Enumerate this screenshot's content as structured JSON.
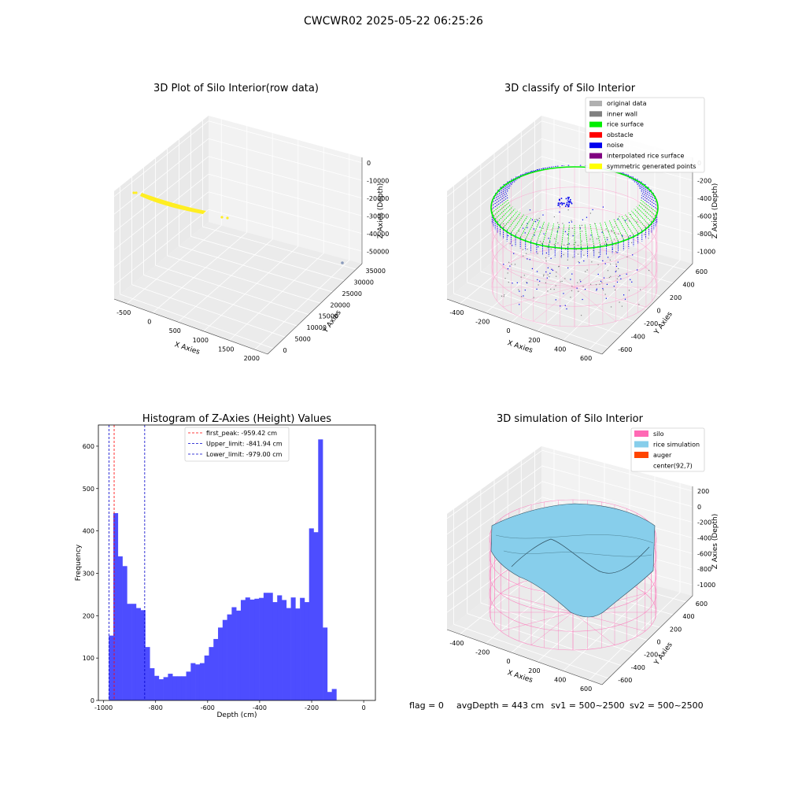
{
  "figure": {
    "suptitle": "CWCWR02 2025-05-22 06:25:26",
    "status": {
      "flag": "flag = 0",
      "avgDepth": "avgDepth = 443 cm",
      "sv1": "sv1 = 500~2500",
      "sv2": "sv2 = 500~2500"
    }
  },
  "panels": {
    "raw": {
      "title": "3D Plot of Silo Interior(row data)",
      "xlabel": "X Axies",
      "ylabel": "Y Axies",
      "zlabel": "Z Axies (Depth)",
      "xticks": [
        "-500",
        "0",
        "500",
        "1000",
        "1500",
        "2000"
      ],
      "yticks": [
        "0",
        "5000",
        "10000",
        "15000",
        "20000",
        "25000",
        "30000",
        "35000"
      ],
      "zticks": [
        "0",
        "-10000",
        "-20000",
        "-30000",
        "-40000",
        "-50000"
      ],
      "point_color": "#ffee22",
      "outlier_color": "#8899bb"
    },
    "classify": {
      "title": "3D classify of Silo Interior",
      "xlabel": "X Axies",
      "ylabel": "Y Axies",
      "zlabel": "Z Axies (Depth)",
      "xticks": [
        "-400",
        "-200",
        "0",
        "200",
        "400",
        "600"
      ],
      "yticks": [
        "-600",
        "-400",
        "-200",
        "0",
        "200",
        "400",
        "600"
      ],
      "zticks": [
        "0",
        "-200",
        "-400",
        "-600",
        "-800",
        "-1000"
      ],
      "legend": [
        {
          "label": "original data",
          "color": "#b0b0b0"
        },
        {
          "label": "inner wall",
          "color": "#808080"
        },
        {
          "label": "rice surface",
          "color": "#00ee00"
        },
        {
          "label": "obstacle",
          "color": "#ff0000"
        },
        {
          "label": "noise",
          "color": "#0000ee"
        },
        {
          "label": "interpolated rice surface",
          "color": "#800080"
        },
        {
          "label": "symmetric generated points",
          "color": "#ffff00"
        }
      ]
    },
    "simulation": {
      "title": "3D simulation of Silo Interior",
      "xlabel": "X Axies",
      "ylabel": "Y Axies",
      "zlabel": "Z Axies (Depth)",
      "xticks": [
        "-400",
        "-200",
        "0",
        "200",
        "400",
        "600"
      ],
      "yticks": [
        "-600",
        "-400",
        "-200",
        "0",
        "200",
        "400",
        "600"
      ],
      "zticks": [
        "200",
        "0",
        "-200",
        "-400",
        "-600",
        "-800",
        "-1000"
      ],
      "legend": [
        {
          "label": "silo",
          "color": "#ff69b4"
        },
        {
          "label": "rice simulation",
          "color": "#87ceeb"
        },
        {
          "label": "auger",
          "color": "#ff4500"
        },
        {
          "label": "center(92,7)",
          "color": "#ffffff"
        }
      ]
    }
  },
  "chart_data": {
    "type": "bar",
    "title": "Histogram of Z-Axies (Height) Values",
    "xlabel": "Depth (cm)",
    "ylabel": "Frequency",
    "xlim": [
      -1020,
      45
    ],
    "ylim": [
      0,
      650
    ],
    "xticks": [
      -1000,
      -800,
      -600,
      -400,
      -200,
      0
    ],
    "yticks": [
      0,
      100,
      200,
      300,
      400,
      500,
      600
    ],
    "bin_width": 17.5,
    "bin_start": -980,
    "values": [
      153,
      442,
      340,
      317,
      228,
      228,
      218,
      213,
      126,
      76,
      58,
      50,
      55,
      63,
      57,
      57,
      57,
      68,
      88,
      85,
      88,
      106,
      126,
      145,
      172,
      190,
      203,
      220,
      212,
      237,
      243,
      238,
      240,
      242,
      254,
      254,
      232,
      248,
      237,
      218,
      243,
      217,
      242,
      232,
      406,
      397,
      616,
      172,
      20,
      27
    ],
    "bar_color": "#4d4dff",
    "lines": [
      {
        "label": "first_peak: -959.42 cm",
        "x": -959.42,
        "color": "#ff0000"
      },
      {
        "label": "Upper_limit: -841.94 cm",
        "x": -841.94,
        "color": "#0000cc"
      },
      {
        "label": "Lower_limit: -979.00 cm",
        "x": -979.0,
        "color": "#0000cc"
      }
    ]
  }
}
